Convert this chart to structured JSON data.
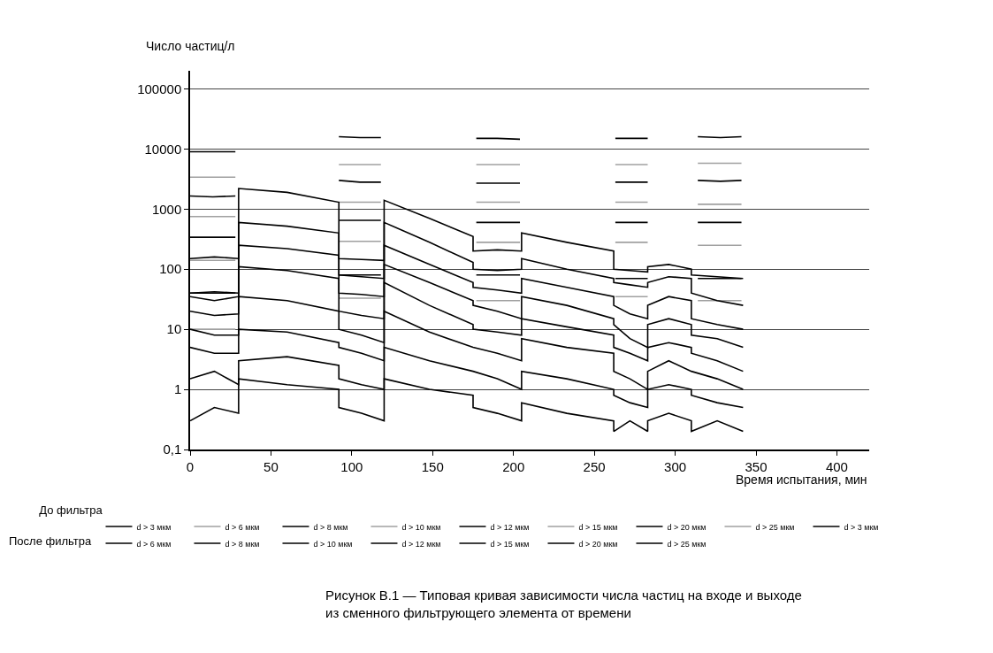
{
  "chart_data": {
    "type": "line",
    "ylabel": "Число частиц/л",
    "xlabel": "Время испытания, мин",
    "annotations": [
      "После фильтра",
      "Рисунок В.1 — Типовая кривая зависимости числа частиц на входе и выходе\nиз сменного фильтрующего элемента от времени"
    ],
    "legend_title": "До фильтра",
    "log": "y",
    "grid": "y",
    "legend": "bottom",
    "xlim": [
      0,
      420
    ],
    "xticks": [
      0,
      50,
      100,
      150,
      200,
      250,
      300,
      350,
      400
    ],
    "ylim": [
      0.1,
      200000
    ],
    "yticks": [
      {
        "value": 0.1,
        "label": "0,1"
      },
      1,
      10,
      100,
      1000,
      10000,
      100000
    ],
    "series": [
      {
        "name": "d > 3 мкм",
        "color": "#000000",
        "x": [
          0,
          14,
          28,
          60,
          92,
          105,
          118,
          150,
          177,
          190,
          204,
          240,
          263,
          273,
          283,
          300,
          314,
          328,
          341
        ],
        "values": [
          9000,
          9000,
          9000,
          null,
          16000,
          15500,
          15500,
          null,
          15000,
          15000,
          14500,
          null,
          15000,
          15000,
          15000,
          null,
          16000,
          15500,
          16000
        ]
      },
      {
        "name": "d > 6 мкм",
        "color": "#a0a0a0",
        "x": [
          0,
          14,
          28,
          60,
          92,
          105,
          118,
          150,
          177,
          190,
          204,
          240,
          263,
          273,
          283,
          300,
          314,
          328,
          341
        ],
        "values": [
          3400,
          3400,
          3400,
          null,
          5500,
          5500,
          5500,
          null,
          5500,
          5500,
          5500,
          null,
          5500,
          5500,
          5500,
          null,
          5800,
          5800,
          5800
        ]
      },
      {
        "name": "d > 8 мкм",
        "color": "#000000",
        "x": [
          0,
          14,
          28,
          60,
          92,
          105,
          118,
          150,
          177,
          190,
          204,
          240,
          263,
          273,
          283,
          300,
          314,
          328,
          341
        ],
        "values": [
          1650,
          1600,
          1650,
          null,
          3000,
          2800,
          2800,
          null,
          2700,
          2700,
          2700,
          null,
          2800,
          2800,
          2800,
          null,
          3000,
          2900,
          3000
        ]
      },
      {
        "name": "d > 10 мкм",
        "color": "#a0a0a0",
        "x": [
          0,
          14,
          28,
          60,
          92,
          105,
          118,
          150,
          177,
          190,
          204,
          240,
          263,
          273,
          283,
          300,
          314,
          328,
          341
        ],
        "values": [
          750,
          750,
          750,
          null,
          1300,
          1300,
          1300,
          null,
          1300,
          1300,
          1300,
          null,
          1300,
          1300,
          1300,
          null,
          1200,
          1200,
          1200
        ]
      },
      {
        "name": "d > 12 мкм",
        "color": "#000000",
        "x": [
          0,
          14,
          28,
          60,
          92,
          105,
          118,
          150,
          177,
          190,
          204,
          240,
          263,
          273,
          283,
          300,
          314,
          328,
          341
        ],
        "values": [
          340,
          340,
          340,
          null,
          650,
          650,
          650,
          null,
          600,
          600,
          600,
          null,
          600,
          600,
          600,
          null,
          600,
          600,
          600
        ]
      },
      {
        "name": "d > 15 мкм",
        "color": "#a0a0a0",
        "x": [
          0,
          14,
          28,
          60,
          92,
          105,
          118,
          150,
          177,
          190,
          204,
          240,
          263,
          273,
          283,
          300,
          314,
          328,
          341
        ],
        "values": [
          140,
          140,
          140,
          null,
          290,
          290,
          290,
          null,
          280,
          280,
          280,
          null,
          280,
          280,
          280,
          null,
          250,
          250,
          250
        ]
      },
      {
        "name": "d > 20 мкм",
        "color": "#000000",
        "x": [
          0,
          14,
          28,
          60,
          92,
          105,
          118,
          150,
          177,
          190,
          204,
          240,
          263,
          273,
          283,
          300,
          314,
          328,
          341
        ],
        "values": [
          40,
          40,
          40,
          null,
          80,
          80,
          80,
          null,
          80,
          80,
          80,
          null,
          70,
          70,
          70,
          null,
          70,
          70,
          70
        ]
      },
      {
        "name": "d > 25 мкм",
        "color": "#a0a0a0",
        "x": [
          0,
          14,
          28,
          60,
          92,
          105,
          118,
          150,
          177,
          190,
          204,
          240,
          263,
          273,
          283,
          300,
          314,
          328,
          341
        ],
        "values": [
          10,
          10,
          10,
          null,
          33,
          33,
          33,
          null,
          30,
          30,
          30,
          null,
          35,
          35,
          35,
          null,
          30,
          30,
          30
        ]
      },
      {
        "name": "d > 3 мкм",
        "color": "#000000",
        "x": [
          0,
          15,
          30,
          30,
          60,
          92,
          92,
          106,
          120,
          120,
          148,
          175,
          175,
          190,
          205,
          205,
          233,
          262,
          262,
          272,
          283,
          283,
          296,
          310,
          310,
          326,
          342
        ],
        "values": [
          150,
          160,
          150,
          2200,
          1900,
          1300,
          150,
          145,
          140,
          1400,
          700,
          350,
          200,
          210,
          200,
          400,
          280,
          200,
          100,
          95,
          90,
          110,
          120,
          100,
          80,
          75,
          70
        ]
      },
      {
        "name": "d > 6 мкм",
        "color": "#000000",
        "x": [
          0,
          15,
          30,
          30,
          60,
          92,
          92,
          106,
          120,
          120,
          148,
          175,
          175,
          190,
          205,
          205,
          233,
          262,
          262,
          272,
          283,
          283,
          296,
          310,
          310,
          326,
          342
        ],
        "values": [
          40,
          42,
          40,
          600,
          520,
          400,
          80,
          75,
          70,
          600,
          280,
          130,
          100,
          95,
          100,
          150,
          100,
          70,
          60,
          55,
          50,
          60,
          75,
          70,
          40,
          30,
          25
        ]
      },
      {
        "name": "d > 8 мкм",
        "color": "#000000",
        "x": [
          0,
          15,
          30,
          30,
          60,
          92,
          92,
          106,
          120,
          120,
          148,
          175,
          175,
          190,
          205,
          205,
          233,
          262,
          262,
          272,
          283,
          283,
          296,
          310,
          310,
          326,
          342
        ],
        "values": [
          35,
          30,
          35,
          250,
          220,
          170,
          40,
          38,
          35,
          250,
          120,
          60,
          50,
          45,
          40,
          70,
          50,
          35,
          25,
          18,
          15,
          25,
          35,
          30,
          15,
          12,
          10
        ]
      },
      {
        "name": "d > 10 мкм",
        "color": "#000000",
        "x": [
          0,
          15,
          30,
          30,
          60,
          92,
          92,
          106,
          120,
          120,
          148,
          175,
          175,
          190,
          205,
          205,
          233,
          262,
          262,
          272,
          283,
          283,
          296,
          310,
          310,
          326,
          342
        ],
        "values": [
          20,
          17,
          18,
          110,
          95,
          70,
          20,
          17,
          15,
          120,
          60,
          30,
          25,
          20,
          15,
          35,
          25,
          15,
          12,
          7,
          5,
          12,
          15,
          12,
          8,
          7,
          5
        ]
      },
      {
        "name": "d > 12 мкм",
        "color": "#000000",
        "x": [
          0,
          15,
          30,
          30,
          60,
          92,
          92,
          106,
          120,
          120,
          148,
          175,
          175,
          190,
          205,
          205,
          233,
          262,
          262,
          272,
          283,
          283,
          296,
          310,
          310,
          326,
          342
        ],
        "values": [
          10,
          8,
          8,
          35,
          30,
          20,
          10,
          8,
          6,
          60,
          25,
          12,
          10,
          9,
          8,
          15,
          11,
          8,
          5,
          4,
          3,
          5,
          6,
          5,
          4,
          3,
          2
        ]
      },
      {
        "name": "d > 15 мкм",
        "color": "#000000",
        "x": [
          0,
          15,
          30,
          30,
          60,
          92,
          92,
          106,
          120,
          120,
          148,
          175,
          175,
          190,
          205,
          205,
          233,
          262,
          262,
          272,
          283,
          283,
          296,
          310,
          310,
          326,
          342
        ],
        "values": [
          5,
          4,
          4,
          10,
          9,
          6,
          5,
          4,
          3,
          20,
          9,
          5,
          5,
          4,
          3,
          7,
          5,
          4,
          2,
          1.5,
          1,
          2,
          3,
          2,
          2,
          1.5,
          1
        ]
      },
      {
        "name": "d > 20 мкм",
        "color": "#000000",
        "x": [
          0,
          15,
          30,
          30,
          60,
          92,
          92,
          106,
          120,
          120,
          148,
          175,
          175,
          190,
          205,
          205,
          233,
          262,
          262,
          272,
          283,
          283,
          296,
          310,
          310,
          326,
          342
        ],
        "values": [
          1.5,
          2,
          1.2,
          3,
          3.5,
          2.5,
          1.5,
          1.2,
          1,
          5,
          3,
          2,
          2,
          1.5,
          1,
          2,
          1.5,
          1,
          0.8,
          0.6,
          0.5,
          1,
          1.2,
          1,
          0.8,
          0.6,
          0.5
        ]
      },
      {
        "name": "d > 25 мкм",
        "color": "#000000",
        "x": [
          0,
          15,
          30,
          30,
          60,
          92,
          92,
          106,
          120,
          120,
          148,
          175,
          175,
          190,
          205,
          205,
          233,
          262,
          262,
          272,
          283,
          283,
          296,
          310,
          310,
          326,
          342
        ],
        "values": [
          0.3,
          0.5,
          0.4,
          1.5,
          1.2,
          1,
          0.5,
          0.4,
          0.3,
          1.5,
          1,
          0.8,
          0.5,
          0.4,
          0.3,
          0.6,
          0.4,
          0.3,
          0.2,
          0.3,
          0.2,
          0.3,
          0.4,
          0.3,
          0.2,
          0.3,
          0.2
        ]
      }
    ]
  }
}
